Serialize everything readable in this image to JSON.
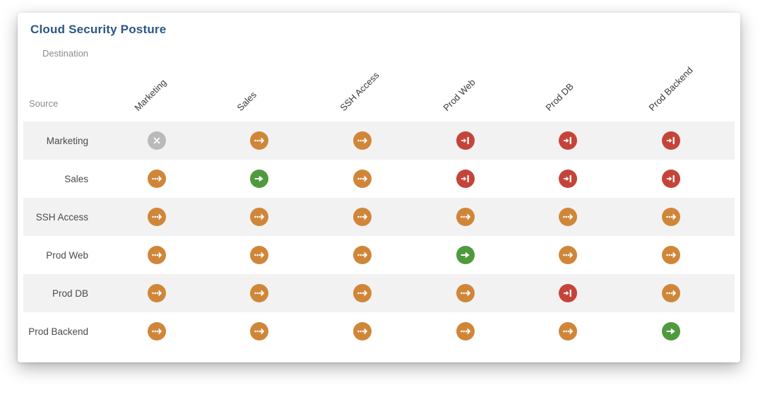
{
  "card": {
    "title": "Cloud Security Posture"
  },
  "axis": {
    "destination_label": "Destination",
    "source_label": "Source"
  },
  "matrix": {
    "columns": [
      "Marketing",
      "Sales",
      "SSH Access",
      "Prod Web",
      "Prod DB",
      "Prod Backend"
    ],
    "rows": [
      {
        "label": "Marketing",
        "cells": [
          "none",
          "filtered",
          "filtered",
          "blocked",
          "blocked",
          "blocked"
        ]
      },
      {
        "label": "Sales",
        "cells": [
          "filtered",
          "allowed",
          "filtered",
          "blocked",
          "blocked",
          "blocked"
        ]
      },
      {
        "label": "SSH Access",
        "cells": [
          "filtered",
          "filtered",
          "filtered",
          "filtered",
          "filtered",
          "filtered"
        ]
      },
      {
        "label": "Prod Web",
        "cells": [
          "filtered",
          "filtered",
          "filtered",
          "allowed",
          "filtered",
          "filtered"
        ]
      },
      {
        "label": "Prod DB",
        "cells": [
          "filtered",
          "filtered",
          "filtered",
          "filtered",
          "blocked",
          "filtered"
        ]
      },
      {
        "label": "Prod Backend",
        "cells": [
          "filtered",
          "filtered",
          "filtered",
          "filtered",
          "filtered",
          "allowed"
        ]
      }
    ]
  },
  "status_styles": {
    "filtered": {
      "color": "#D08639",
      "icon": "dotted-arrow-icon"
    },
    "allowed": {
      "color": "#4F9A3D",
      "icon": "arrow-right-icon"
    },
    "blocked": {
      "color": "#C5443A",
      "icon": "arrow-into-wall-icon"
    },
    "none": {
      "color": "#BABABA",
      "icon": "x-icon"
    }
  },
  "theme": {
    "title_color": "#2A5783",
    "stripe_color": "#F2F2F2",
    "axis_label_color": "#8C8C8C"
  }
}
